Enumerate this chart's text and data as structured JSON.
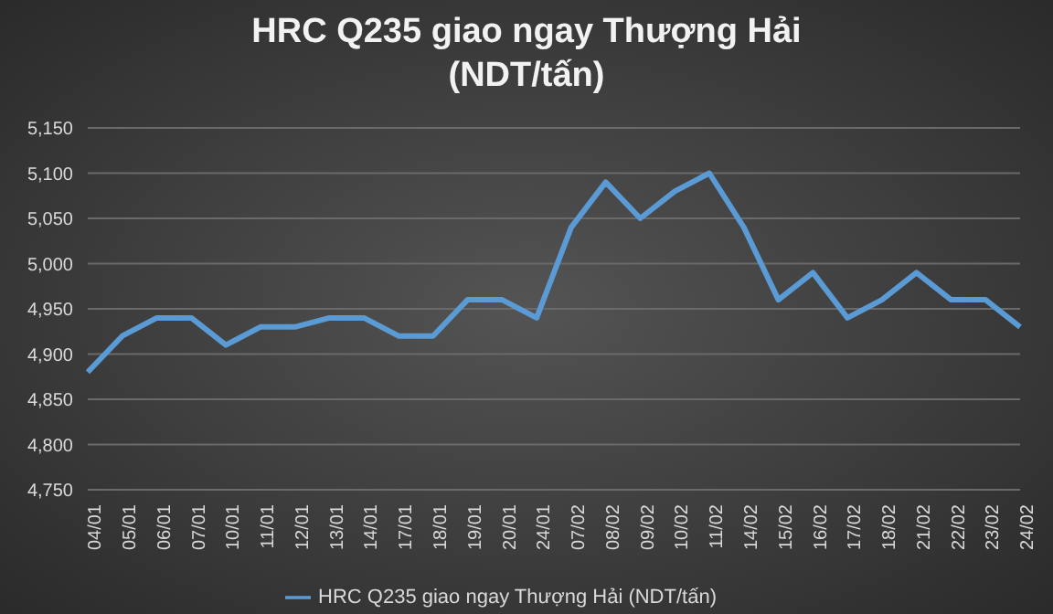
{
  "chart_data": {
    "type": "line",
    "title": "HRC Q235 giao ngay Thượng Hải\n(NDT/tấn)",
    "categories": [
      "04/01",
      "05/01",
      "06/01",
      "07/01",
      "10/01",
      "11/01",
      "12/01",
      "13/01",
      "14/01",
      "17/01",
      "18/01",
      "19/01",
      "20/01",
      "24/01",
      "07/02",
      "08/02",
      "09/02",
      "10/02",
      "11/02",
      "14/02",
      "15/02",
      "16/02",
      "17/02",
      "18/02",
      "21/02",
      "22/02",
      "23/02",
      "24/02"
    ],
    "series": [
      {
        "name": "HRC Q235 giao ngay Thượng Hải (NDT/tấn)",
        "color": "#5b9bd5",
        "values": [
          4880,
          4920,
          4940,
          4940,
          4910,
          4930,
          4930,
          4940,
          4940,
          4920,
          4920,
          4960,
          4960,
          4940,
          5040,
          5090,
          5050,
          5080,
          5100,
          5040,
          4960,
          4990,
          4940,
          4960,
          4990,
          4960,
          4960,
          4930
        ]
      }
    ],
    "ylim": [
      4750,
      5150
    ],
    "yticks": [
      {
        "value": 4750,
        "label": "4,750"
      },
      {
        "value": 4800,
        "label": "4,800"
      },
      {
        "value": 4850,
        "label": "4,850"
      },
      {
        "value": 4900,
        "label": "4,900"
      },
      {
        "value": 4950,
        "label": "4,950"
      },
      {
        "value": 5000,
        "label": "5,000"
      },
      {
        "value": 5050,
        "label": "5,050"
      },
      {
        "value": 5100,
        "label": "5,100"
      },
      {
        "value": 5150,
        "label": "5,150"
      }
    ],
    "grid": "y",
    "legend": "bottom",
    "marker": "none",
    "line_style": "solid"
  }
}
